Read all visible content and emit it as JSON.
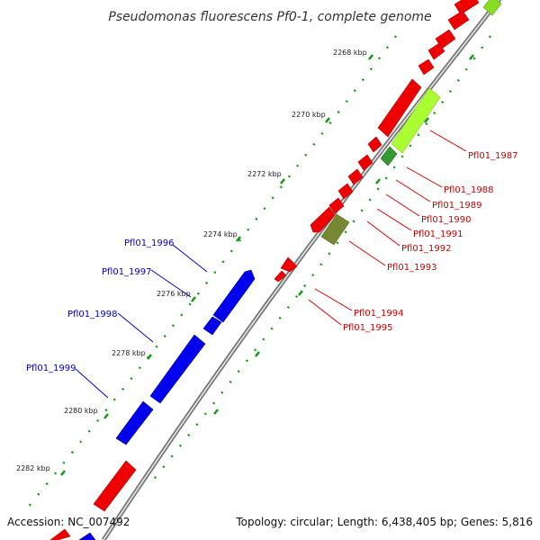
{
  "title": "Pseudomonas fluorescens Pf0-1, complete genome",
  "footer": {
    "accession": "Accession: NC_007492",
    "topology": "Topology: circular; Length: 6,438,405 bp; Genes: 5,816"
  },
  "colors": {
    "backbone": "#888888",
    "forward_cds": "#ee0000",
    "reverse_cds": "#0000ee",
    "light_green": "#aaff33",
    "dark_olive": "#667722",
    "dot_green": "#119911",
    "label_red": "#cc0000",
    "label_blue": "#0000cc"
  },
  "scale_labels": [
    "2268 kbp",
    "2270 kbp",
    "2272 kbp",
    "2274 kbp",
    "2276 kbp",
    "2278 kbp",
    "2280 kbp",
    "2282 kbp"
  ],
  "genes_forward": [
    "Pfl01_1987",
    "Pfl01_1988",
    "Pfl01_1989",
    "Pfl01_1990",
    "Pfl01_1991",
    "Pfl01_1992",
    "Pfl01_1993",
    "Pfl01_1994",
    "Pfl01_1995"
  ],
  "genes_reverse": [
    "Pfl01_1996",
    "Pfl01_1997",
    "Pfl01_1998",
    "Pfl01_1999"
  ]
}
